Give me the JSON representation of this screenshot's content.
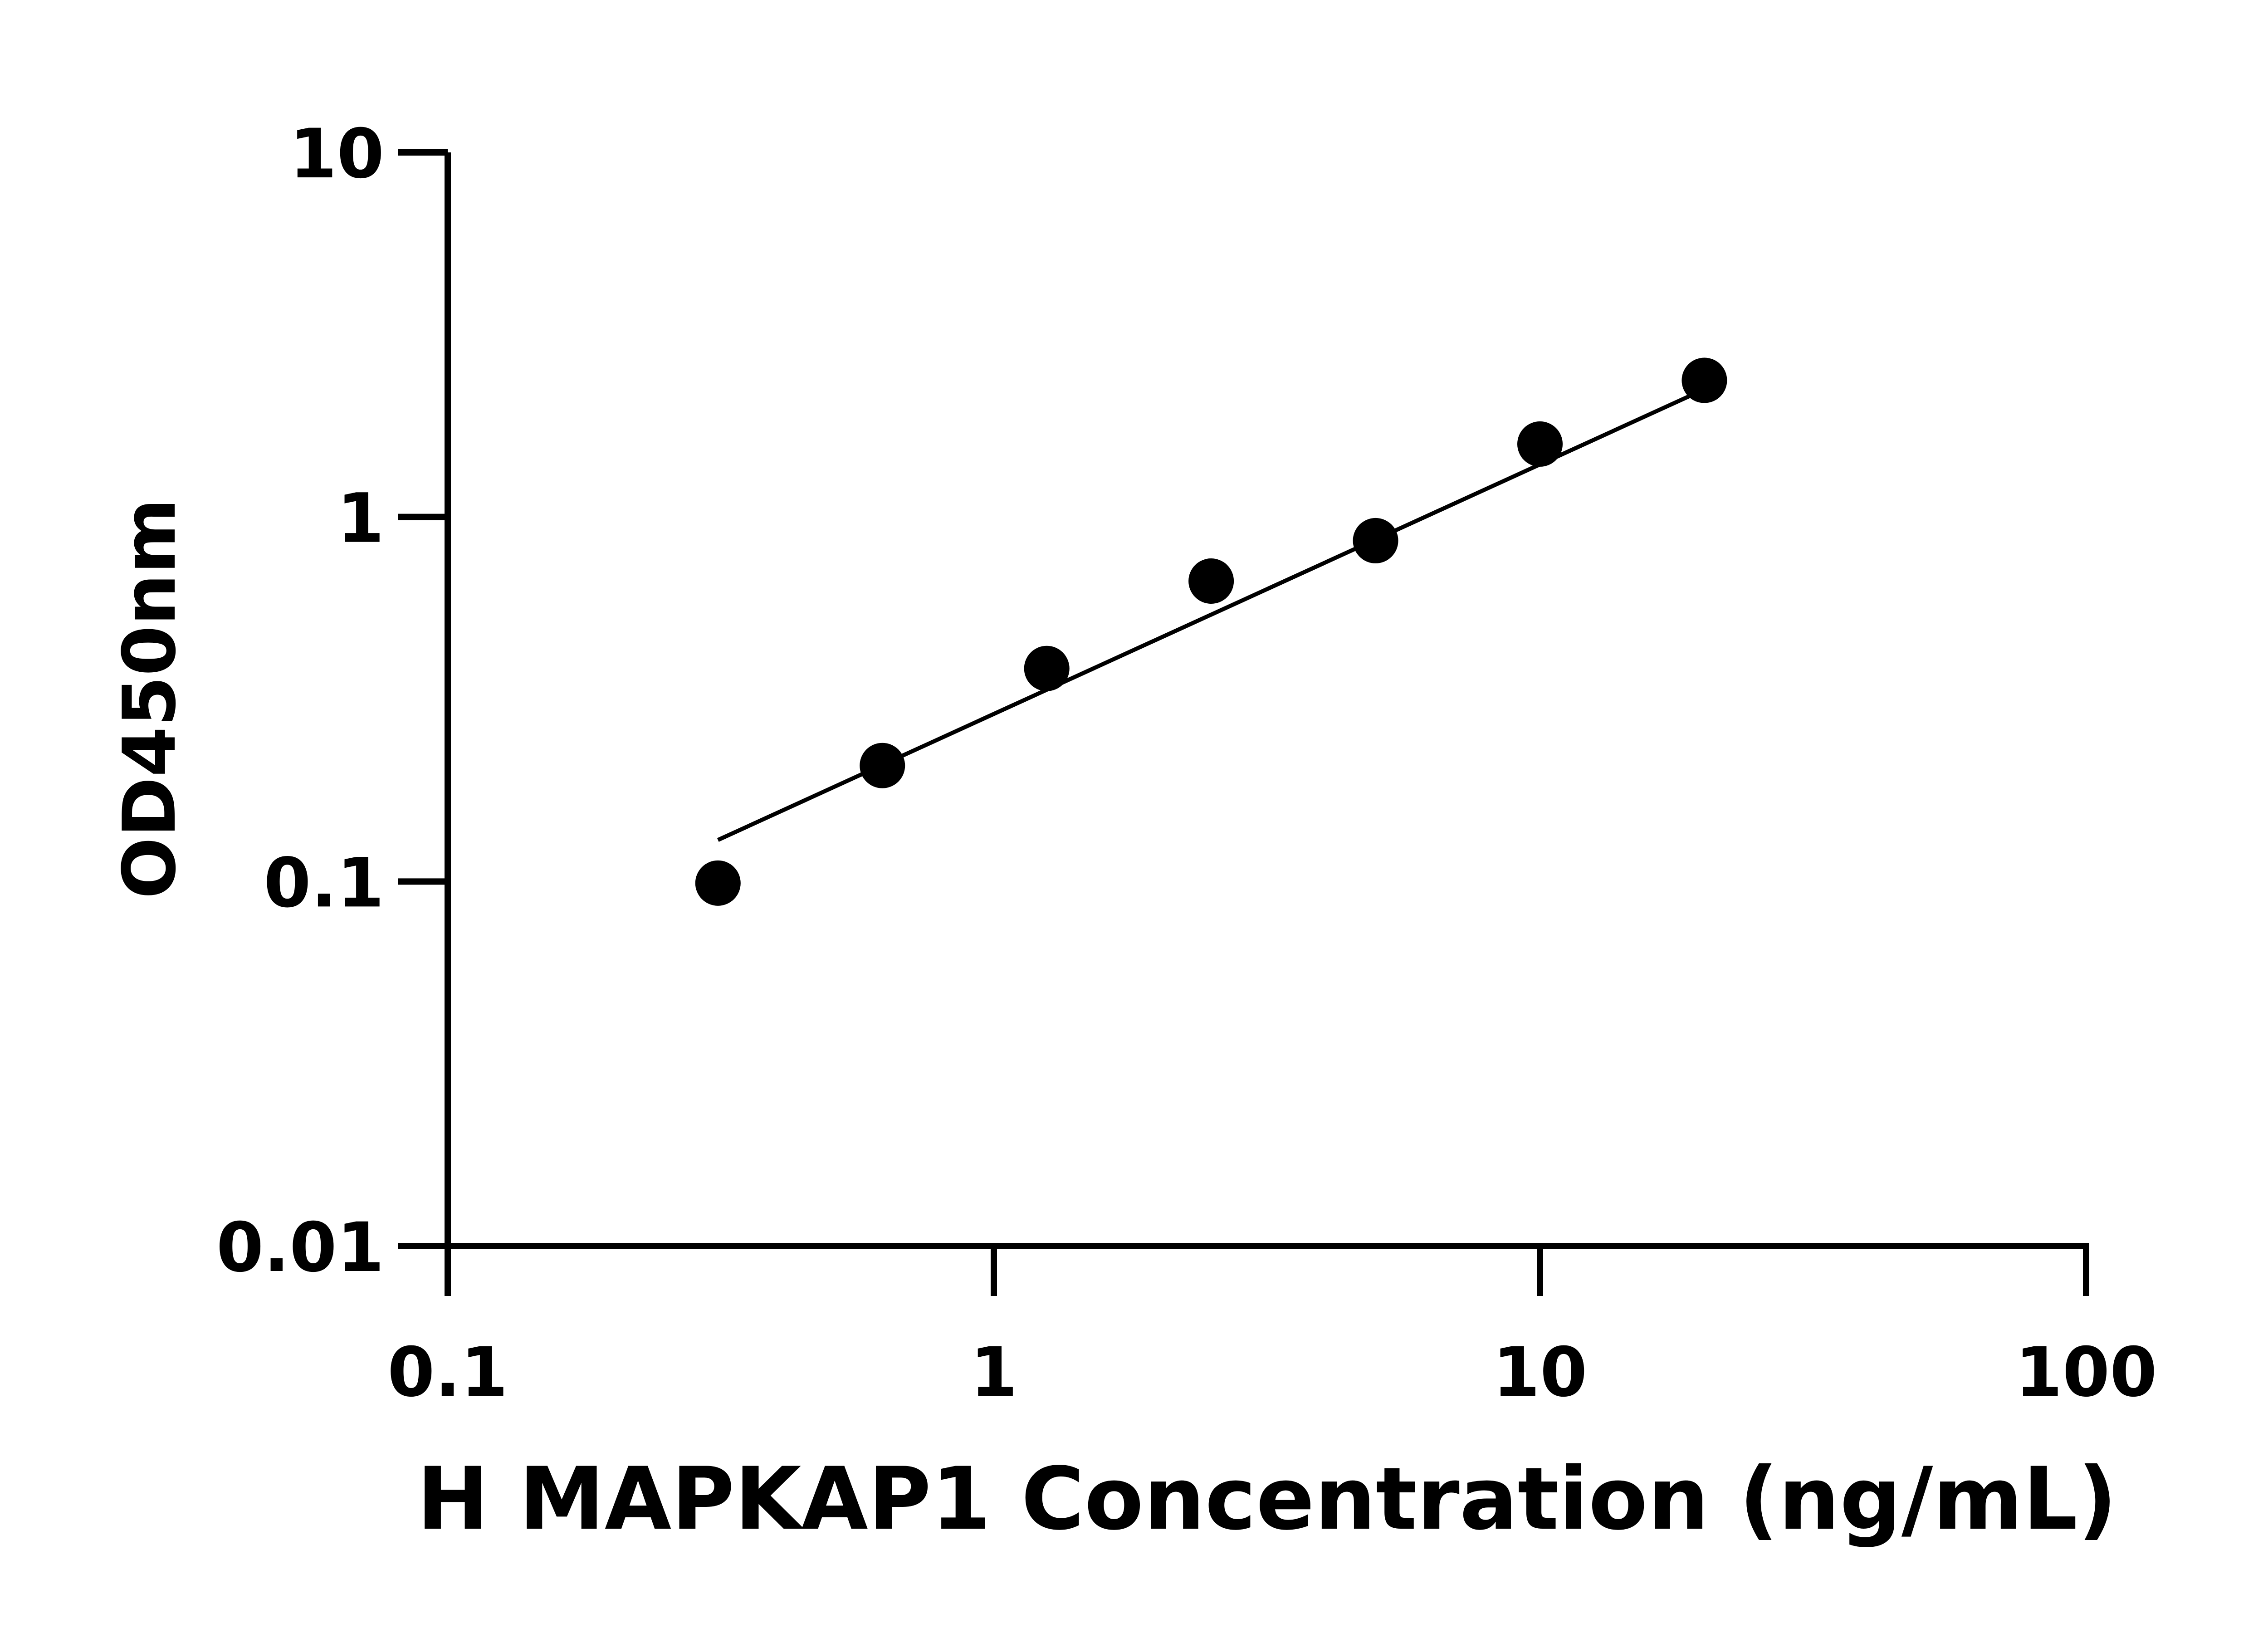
{
  "chart_data": {
    "type": "scatter",
    "title": "",
    "xlabel": "H MAPKAP1 Concentration (ng/mL)",
    "ylabel": "OD450nm",
    "xscale": "log",
    "yscale": "log",
    "xlim": [
      0.1,
      100
    ],
    "ylim": [
      0.01,
      10
    ],
    "xticks": [
      "0.1",
      "1",
      "10",
      "100"
    ],
    "yticks": [
      "0.01",
      "0.1",
      "1",
      "10"
    ],
    "grid": false,
    "series": [
      {
        "x": [
          0.3125,
          0.625,
          1.25,
          2.5,
          5,
          10,
          20
        ],
        "y": [
          0.099,
          0.208,
          0.384,
          0.667,
          0.861,
          1.585,
          2.37
        ],
        "marker": "circle",
        "color": "#000000"
      }
    ],
    "fit": {
      "x": [
        0.3125,
        20
      ],
      "y": [
        0.13,
        2.24
      ],
      "color": "#000000"
    }
  }
}
